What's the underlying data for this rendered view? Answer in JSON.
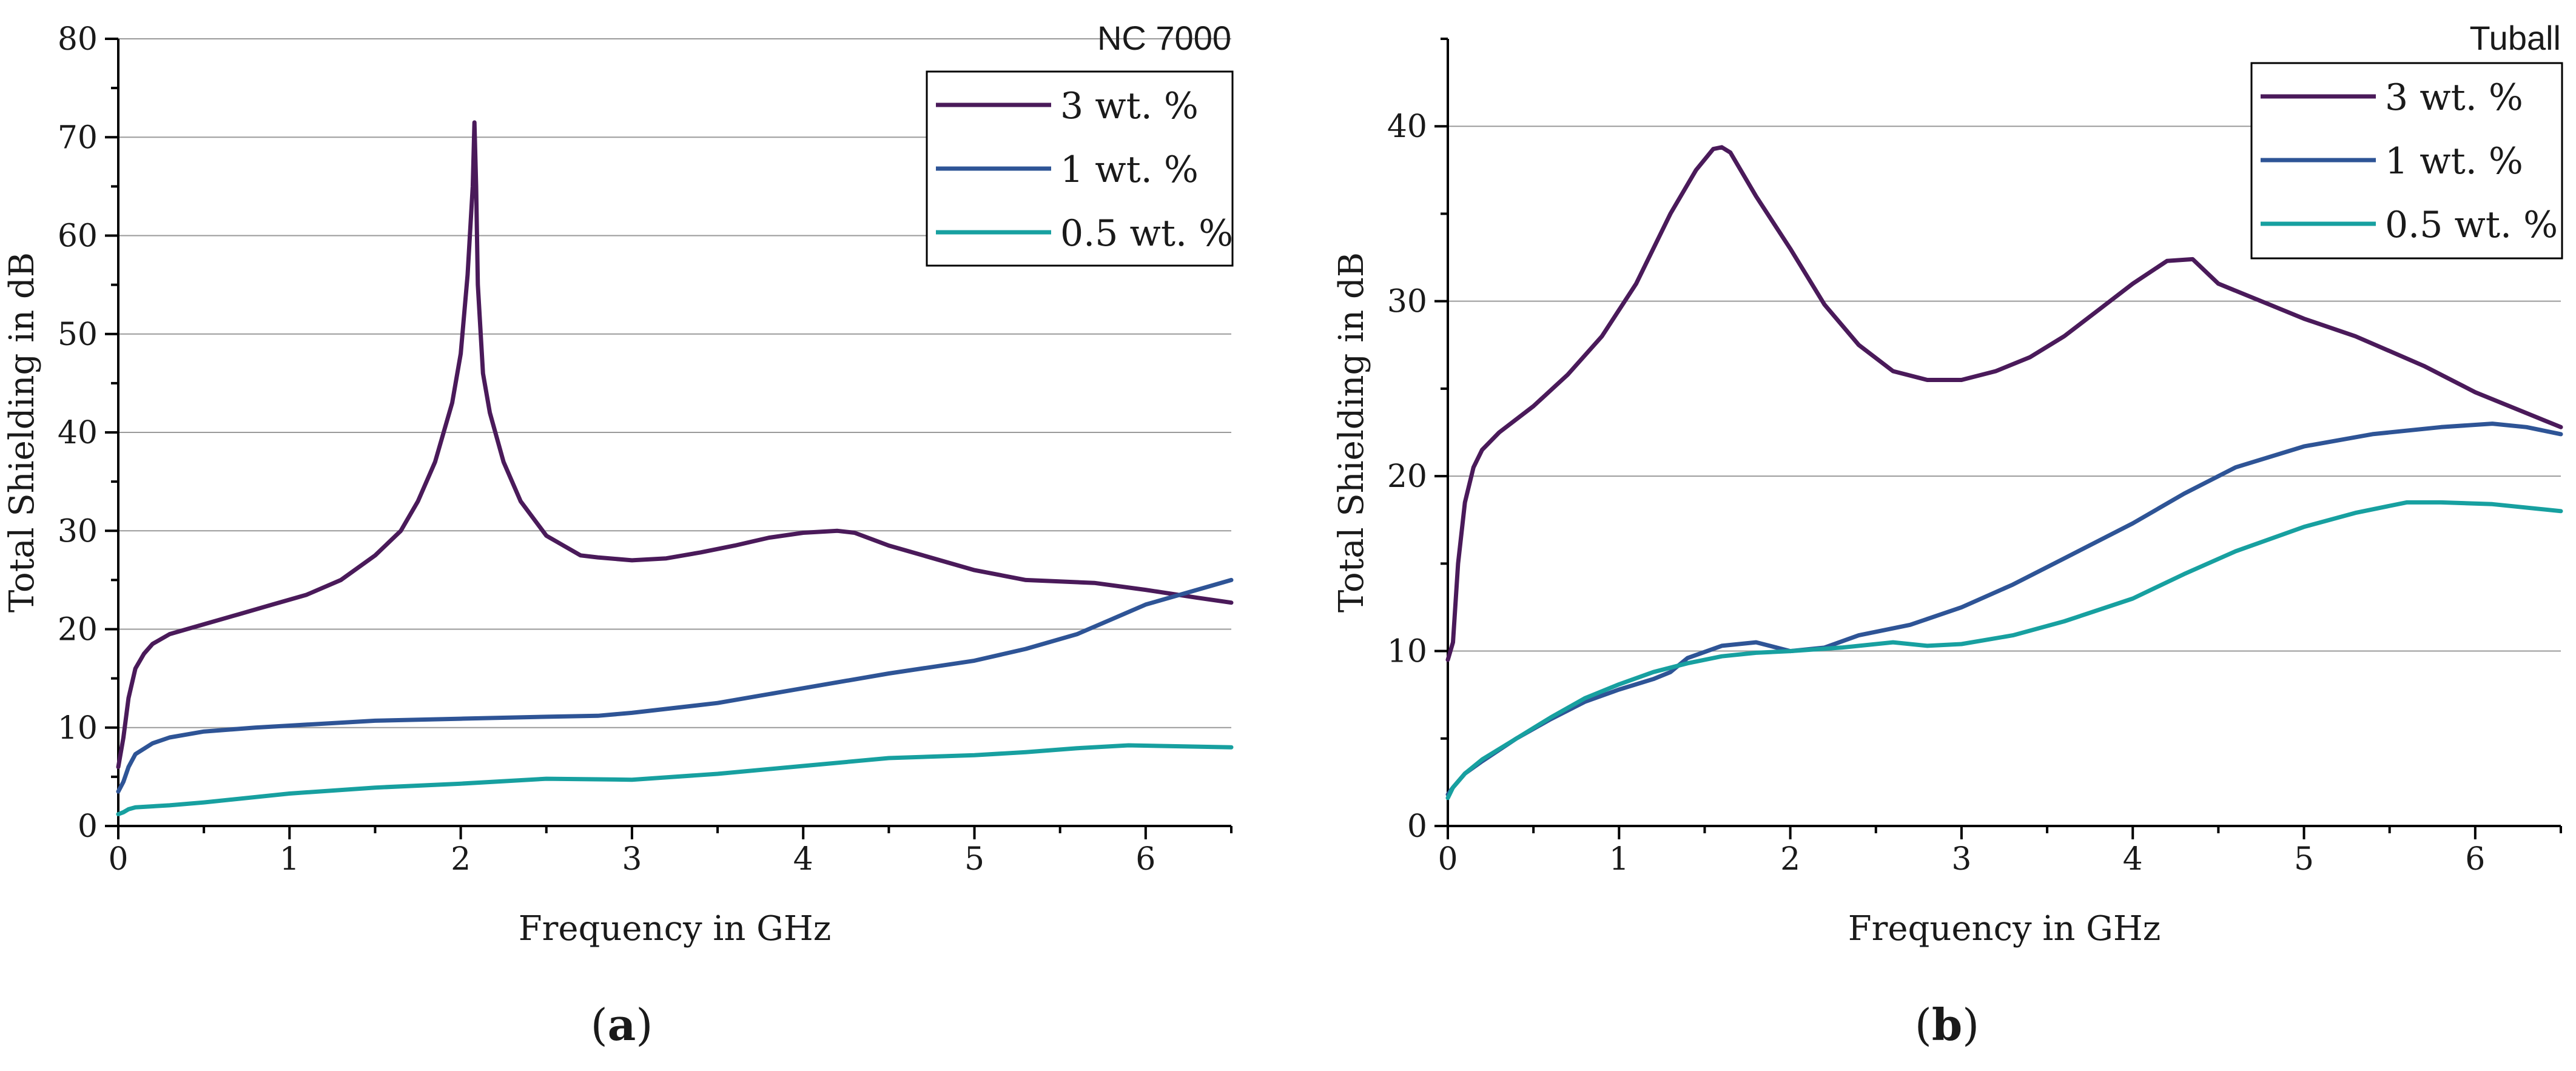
{
  "chart_data": [
    {
      "type": "line",
      "title": "NC 7000",
      "panel_label": "a",
      "xlabel": "Frequency in GHz",
      "ylabel": "Total Shielding in dB",
      "xlim": [
        0,
        6.5
      ],
      "ylim": [
        0,
        80
      ],
      "xticks": [
        0,
        1,
        2,
        3,
        4,
        5,
        6
      ],
      "yticks": [
        0,
        10,
        20,
        30,
        40,
        50,
        60,
        70,
        80
      ],
      "grid": true,
      "legend_position": "top-right",
      "series": [
        {
          "name": "3 wt. %",
          "color": "#4a1a5a",
          "x": [
            0,
            0.03,
            0.06,
            0.1,
            0.15,
            0.2,
            0.3,
            0.4,
            0.5,
            0.7,
            0.9,
            1.1,
            1.3,
            1.5,
            1.65,
            1.75,
            1.85,
            1.95,
            2.0,
            2.04,
            2.07,
            2.08,
            2.09,
            2.1,
            2.13,
            2.17,
            2.25,
            2.35,
            2.5,
            2.6,
            2.7,
            2.8,
            3.0,
            3.2,
            3.4,
            3.6,
            3.8,
            4.0,
            4.2,
            4.3,
            4.5,
            4.7,
            5.0,
            5.3,
            5.7,
            6.0,
            6.3,
            6.5
          ],
          "y": [
            6,
            9,
            13,
            16,
            17.5,
            18.5,
            19.5,
            20,
            20.5,
            21.5,
            22.5,
            23.5,
            25,
            27.5,
            30,
            33,
            37,
            43,
            48,
            56,
            65,
            71.5,
            65,
            55,
            46,
            42,
            37,
            33,
            29.5,
            28.5,
            27.5,
            27.3,
            27,
            27.2,
            27.8,
            28.5,
            29.3,
            29.8,
            30,
            29.8,
            28.5,
            27.5,
            26,
            25,
            24.7,
            24,
            23.2,
            22.7
          ]
        },
        {
          "name": "1 wt. %",
          "color": "#2e5496",
          "x": [
            0,
            0.03,
            0.06,
            0.1,
            0.2,
            0.3,
            0.5,
            0.8,
            1.0,
            1.5,
            2.0,
            2.5,
            2.8,
            3.0,
            3.5,
            4.0,
            4.5,
            5.0,
            5.3,
            5.6,
            5.8,
            6.0,
            6.3,
            6.5
          ],
          "y": [
            3.5,
            4.5,
            6,
            7.3,
            8.4,
            9,
            9.6,
            10,
            10.2,
            10.7,
            10.9,
            11.1,
            11.2,
            11.5,
            12.5,
            14,
            15.5,
            16.8,
            18,
            19.5,
            21,
            22.5,
            24,
            25
          ]
        },
        {
          "name": "0.5 wt. %",
          "color": "#17a0a0",
          "x": [
            0,
            0.03,
            0.06,
            0.1,
            0.3,
            0.5,
            1.0,
            1.5,
            2.0,
            2.5,
            3.0,
            3.5,
            4.0,
            4.5,
            5.0,
            5.3,
            5.6,
            5.9,
            6.2,
            6.5
          ],
          "y": [
            1.2,
            1.4,
            1.7,
            1.9,
            2.1,
            2.4,
            3.3,
            3.9,
            4.3,
            4.8,
            4.7,
            5.3,
            6.1,
            6.9,
            7.2,
            7.5,
            7.9,
            8.2,
            8.1,
            8
          ]
        }
      ]
    },
    {
      "type": "line",
      "title": "Tuball",
      "panel_label": "b",
      "xlabel": "Frequency in GHz",
      "ylabel": "Total Shielding in dB",
      "xlim": [
        0,
        6.5
      ],
      "ylim": [
        0,
        45
      ],
      "xticks": [
        0,
        1,
        2,
        3,
        4,
        5,
        6
      ],
      "yticks": [
        0,
        10,
        20,
        30,
        40
      ],
      "grid": true,
      "legend_position": "top-right",
      "series": [
        {
          "name": "3 wt. %",
          "color": "#4a1a5a",
          "x": [
            0,
            0.03,
            0.06,
            0.1,
            0.15,
            0.2,
            0.3,
            0.5,
            0.7,
            0.9,
            1.1,
            1.3,
            1.45,
            1.55,
            1.6,
            1.65,
            1.8,
            2.0,
            2.2,
            2.4,
            2.6,
            2.8,
            3.0,
            3.2,
            3.4,
            3.6,
            3.8,
            4.0,
            4.2,
            4.35,
            4.5,
            4.8,
            5.0,
            5.3,
            5.7,
            6.0,
            6.3,
            6.5
          ],
          "y": [
            9.5,
            10.5,
            15,
            18.5,
            20.5,
            21.5,
            22.5,
            24,
            25.8,
            28,
            31,
            35,
            37.5,
            38.7,
            38.8,
            38.5,
            36,
            33,
            29.8,
            27.5,
            26,
            25.5,
            25.5,
            26,
            26.8,
            28,
            29.5,
            31,
            32.3,
            32.4,
            31,
            29.8,
            29,
            28,
            26.3,
            24.8,
            23.6,
            22.8
          ]
        },
        {
          "name": "1 wt. %",
          "color": "#2e5496",
          "x": [
            0,
            0.03,
            0.1,
            0.2,
            0.4,
            0.6,
            0.8,
            1.0,
            1.2,
            1.3,
            1.4,
            1.6,
            1.8,
            2.0,
            2.2,
            2.4,
            2.7,
            3.0,
            3.3,
            3.6,
            4.0,
            4.3,
            4.6,
            5.0,
            5.4,
            5.8,
            6.1,
            6.3,
            6.5
          ],
          "y": [
            1.8,
            2.2,
            3,
            3.7,
            5,
            6.1,
            7.1,
            7.8,
            8.4,
            8.8,
            9.6,
            10.3,
            10.5,
            10,
            10.2,
            10.9,
            11.5,
            12.5,
            13.8,
            15.3,
            17.3,
            19,
            20.5,
            21.7,
            22.4,
            22.8,
            23,
            22.8,
            22.4
          ]
        },
        {
          "name": "0.5 wt. %",
          "color": "#17a0a0",
          "x": [
            0,
            0.03,
            0.1,
            0.2,
            0.4,
            0.6,
            0.8,
            1.0,
            1.2,
            1.4,
            1.6,
            1.8,
            2.0,
            2.3,
            2.6,
            2.8,
            3.0,
            3.3,
            3.6,
            4.0,
            4.3,
            4.6,
            5.0,
            5.3,
            5.6,
            5.8,
            6.1,
            6.5
          ],
          "y": [
            1.6,
            2.2,
            3,
            3.8,
            5,
            6.2,
            7.3,
            8.1,
            8.8,
            9.3,
            9.7,
            9.9,
            10,
            10.2,
            10.5,
            10.3,
            10.4,
            10.9,
            11.7,
            13,
            14.4,
            15.7,
            17.1,
            17.9,
            18.5,
            18.5,
            18.4,
            18
          ]
        }
      ]
    }
  ]
}
